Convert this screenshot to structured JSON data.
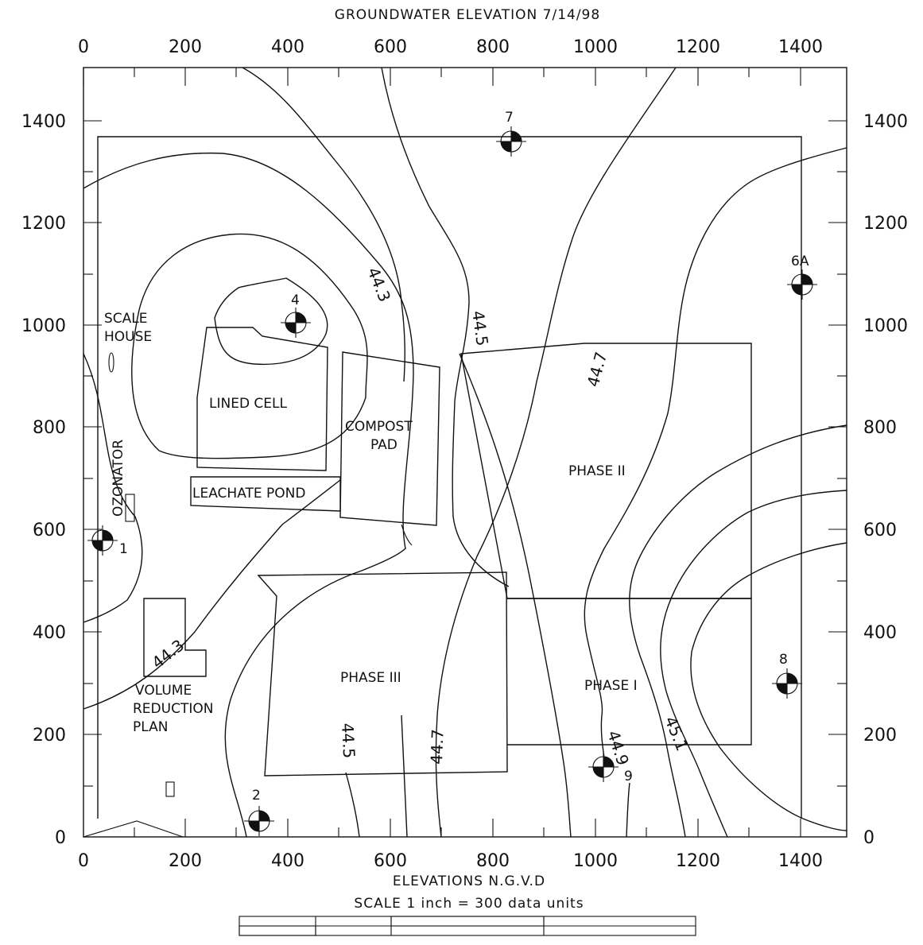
{
  "title": "GROUNDWATER ELEVATION 7/14/98",
  "x_axis_label": "ELEVATIONS N.G.V.D",
  "scale_label": "SCALE 1 inch = 300 data units",
  "axis": {
    "x_ticks": [
      "0",
      "200",
      "400",
      "600",
      "800",
      "1000",
      "1200",
      "1400"
    ],
    "y_ticks": [
      "0",
      "200",
      "400",
      "600",
      "800",
      "1000",
      "1200",
      "1400"
    ]
  },
  "features": {
    "scale_house": [
      "SCALE",
      "HOUSE"
    ],
    "lined_cell": "LINED CELL",
    "compost_pad": [
      "COMPOST",
      "PAD"
    ],
    "leachate_pond": "LEACHATE POND",
    "ozonator": "OZONATOR",
    "volume_reduction": [
      "VOLUME",
      "REDUCTION",
      "PLAN"
    ],
    "phase_ii": "PHASE II",
    "phase_iii": "PHASE III",
    "phase_i": "PHASE I"
  },
  "wells": [
    {
      "id": "1"
    },
    {
      "id": "2"
    },
    {
      "id": "4"
    },
    {
      "id": "6A"
    },
    {
      "id": "7"
    },
    {
      "id": "8"
    },
    {
      "id": "9"
    }
  ],
  "contour_labels": [
    "44.3",
    "44.3",
    "44.5",
    "44.5",
    "44.7",
    "44.7",
    "44.9",
    "45.1"
  ]
}
